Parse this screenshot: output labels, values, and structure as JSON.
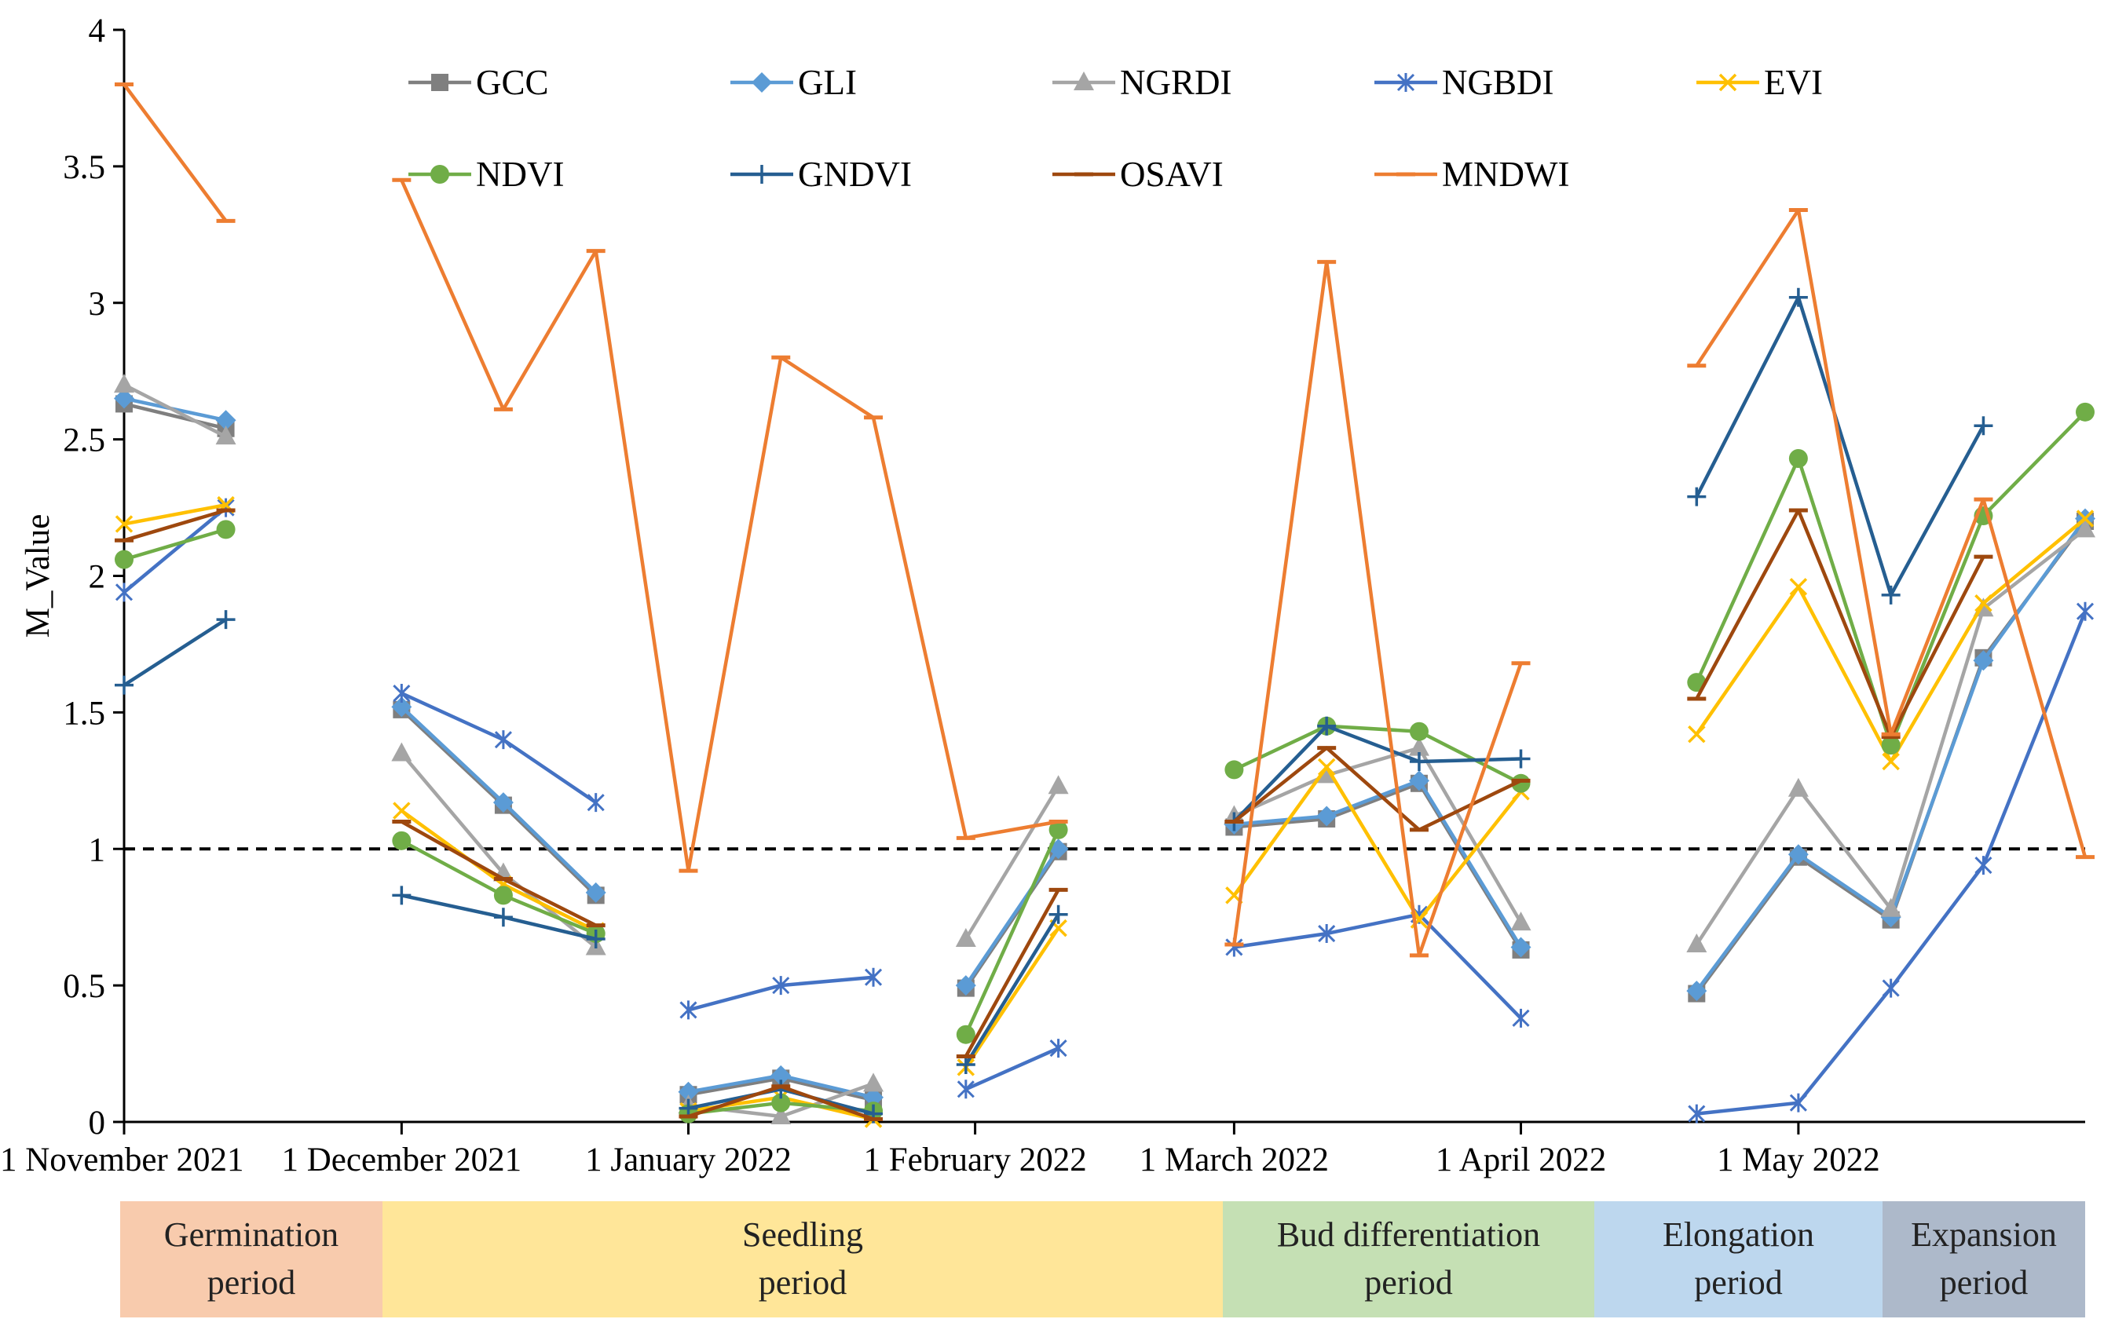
{
  "chart_data": {
    "type": "line",
    "title": "",
    "xlabel": "",
    "ylabel": "M_Value",
    "ylim": [
      0,
      4
    ],
    "yticks": [
      "0",
      "0.5",
      "1",
      "1.5",
      "2",
      "2.5",
      "3",
      "3.5",
      "4"
    ],
    "threshold": 1,
    "x_ticks": [
      {
        "label": "1 November 2021",
        "day": 0
      },
      {
        "label": "1 December 2021",
        "day": 30
      },
      {
        "label": "1 January 2022",
        "day": 61
      },
      {
        "label": "1 February 2022",
        "day": 92
      },
      {
        "label": "1 March 2022",
        "day": 120
      },
      {
        "label": "1 April 2022",
        "day": 151
      },
      {
        "label": "1 May 2022",
        "day": 181
      }
    ],
    "x_range_days": [
      0,
      212
    ],
    "series": [
      {
        "name": "GCC",
        "color": "#7f7f7f",
        "marker": "square",
        "segments": [
          {
            "x": [
              0,
              11
            ],
            "values": [
              2.63,
              2.54
            ]
          },
          {
            "x": [
              30,
              41,
              51
            ],
            "values": [
              1.51,
              1.16,
              0.83
            ]
          },
          {
            "x": [
              61,
              71,
              81
            ],
            "values": [
              0.1,
              0.16,
              0.08
            ]
          },
          {
            "x": [
              91,
              101
            ],
            "values": [
              0.49,
              0.99
            ]
          },
          {
            "x": [
              120,
              130,
              140,
              151
            ],
            "values": [
              1.08,
              1.11,
              1.24,
              0.63
            ]
          },
          {
            "x": [
              170,
              181,
              191,
              201,
              212
            ],
            "values": [
              0.47,
              0.97,
              0.74,
              1.7,
              2.2
            ]
          }
        ]
      },
      {
        "name": "GLI",
        "color": "#5b9bd5",
        "marker": "diamond",
        "segments": [
          {
            "x": [
              0,
              11
            ],
            "values": [
              2.65,
              2.57
            ]
          },
          {
            "x": [
              30,
              41,
              51
            ],
            "values": [
              1.52,
              1.17,
              0.84
            ]
          },
          {
            "x": [
              61,
              71,
              81
            ],
            "values": [
              0.11,
              0.17,
              0.09
            ]
          },
          {
            "x": [
              91,
              101
            ],
            "values": [
              0.5,
              1.0
            ]
          },
          {
            "x": [
              120,
              130,
              140,
              151
            ],
            "values": [
              1.09,
              1.12,
              1.25,
              0.64
            ]
          },
          {
            "x": [
              170,
              181,
              191,
              201,
              212
            ],
            "values": [
              0.48,
              0.98,
              0.75,
              1.69,
              2.21
            ]
          }
        ]
      },
      {
        "name": "NGRDI",
        "color": "#a5a5a5",
        "marker": "triangle",
        "segments": [
          {
            "x": [
              0,
              11
            ],
            "values": [
              2.7,
              2.51
            ]
          },
          {
            "x": [
              30,
              41,
              51
            ],
            "values": [
              1.35,
              0.91,
              0.64
            ]
          },
          {
            "x": [
              61,
              71,
              81
            ],
            "values": [
              0.06,
              0.02,
              0.14
            ]
          },
          {
            "x": [
              91,
              101
            ],
            "values": [
              0.67,
              1.23
            ]
          },
          {
            "x": [
              120,
              130,
              140,
              151
            ],
            "values": [
              1.12,
              1.27,
              1.37,
              0.73
            ]
          },
          {
            "x": [
              170,
              181,
              191,
              201,
              212
            ],
            "values": [
              0.65,
              1.22,
              0.78,
              1.88,
              2.17
            ]
          }
        ]
      },
      {
        "name": "NGBDI",
        "color": "#4472c4",
        "marker": "star",
        "segments": [
          {
            "x": [
              0,
              11
            ],
            "values": [
              1.94,
              2.25
            ]
          },
          {
            "x": [
              30,
              41,
              51
            ],
            "values": [
              1.57,
              1.4,
              1.17
            ]
          },
          {
            "x": [
              61,
              71,
              81
            ],
            "values": [
              0.41,
              0.5,
              0.53
            ]
          },
          {
            "x": [
              91,
              101
            ],
            "values": [
              0.12,
              0.27
            ]
          },
          {
            "x": [
              120,
              130,
              140,
              151
            ],
            "values": [
              0.64,
              0.69,
              0.76,
              0.38
            ]
          },
          {
            "x": [
              170,
              181,
              191,
              201,
              212
            ],
            "values": [
              0.03,
              0.07,
              0.49,
              0.94,
              1.87
            ]
          }
        ]
      },
      {
        "name": "EVI",
        "color": "#ffc000",
        "marker": "x",
        "segments": [
          {
            "x": [
              0,
              11
            ],
            "values": [
              2.19,
              2.26
            ]
          },
          {
            "x": [
              30,
              41,
              51
            ],
            "values": [
              1.14,
              0.87,
              0.7
            ]
          },
          {
            "x": [
              61,
              71,
              81
            ],
            "values": [
              0.04,
              0.09,
              0.01
            ]
          },
          {
            "x": [
              91,
              101
            ],
            "values": [
              0.2,
              0.71
            ]
          },
          {
            "x": [
              120,
              130,
              140,
              151
            ],
            "values": [
              0.83,
              1.3,
              0.74,
              1.21
            ]
          },
          {
            "x": [
              170,
              181,
              191,
              201,
              212
            ],
            "values": [
              1.42,
              1.96,
              1.32,
              1.9,
              2.21
            ]
          }
        ]
      },
      {
        "name": "NDVI",
        "color": "#70ad47",
        "marker": "circle",
        "segments": [
          {
            "x": [
              0,
              11
            ],
            "values": [
              2.06,
              2.17
            ]
          },
          {
            "x": [
              30,
              41,
              51
            ],
            "values": [
              1.03,
              0.83,
              0.69
            ]
          },
          {
            "x": [
              61,
              71,
              81
            ],
            "values": [
              0.03,
              0.07,
              0.04
            ]
          },
          {
            "x": [
              91,
              101
            ],
            "values": [
              0.32,
              1.07
            ]
          },
          {
            "x": [
              120,
              130,
              140,
              151
            ],
            "values": [
              1.29,
              1.45,
              1.43,
              1.24
            ]
          },
          {
            "x": [
              170,
              181,
              191,
              201,
              212
            ],
            "values": [
              1.61,
              2.43,
              1.38,
              2.22,
              2.6
            ]
          }
        ]
      },
      {
        "name": "GNDVI",
        "color": "#255e91",
        "marker": "plus",
        "segments": [
          {
            "x": [
              0,
              11
            ],
            "values": [
              1.6,
              1.84
            ]
          },
          {
            "x": [
              30,
              41,
              51
            ],
            "values": [
              0.83,
              0.75,
              0.67
            ]
          },
          {
            "x": [
              61,
              71,
              81
            ],
            "values": [
              0.05,
              0.12,
              0.03
            ]
          },
          {
            "x": [
              91,
              101
            ],
            "values": [
              0.21,
              0.76
            ]
          },
          {
            "x": [
              120,
              130,
              140,
              151
            ],
            "values": [
              1.1,
              1.45,
              1.32,
              1.33
            ]
          },
          {
            "x": [
              170,
              181,
              191,
              201
            ],
            "values": [
              2.29,
              3.02,
              1.93,
              2.55
            ]
          }
        ]
      },
      {
        "name": "OSAVI",
        "color": "#9e480e",
        "marker": "dash",
        "segments": [
          {
            "x": [
              0,
              11
            ],
            "values": [
              2.13,
              2.24
            ]
          },
          {
            "x": [
              30,
              41,
              51
            ],
            "values": [
              1.1,
              0.89,
              0.72
            ]
          },
          {
            "x": [
              61,
              71,
              81
            ],
            "values": [
              0.02,
              0.13,
              0.01
            ]
          },
          {
            "x": [
              91,
              101
            ],
            "values": [
              0.24,
              0.85
            ]
          },
          {
            "x": [
              120,
              130,
              140,
              151
            ],
            "values": [
              1.1,
              1.37,
              1.07,
              1.25
            ]
          },
          {
            "x": [
              170,
              181,
              191,
              201
            ],
            "values": [
              1.55,
              2.24,
              1.41,
              2.07
            ]
          }
        ]
      },
      {
        "name": "MNDWI",
        "color": "#ed7d31",
        "marker": "dash",
        "segments": [
          {
            "x": [
              0,
              11
            ],
            "values": [
              3.8,
              3.3
            ]
          },
          {
            "x": [
              30,
              41,
              51,
              61,
              71,
              81,
              91,
              101
            ],
            "values": [
              3.45,
              2.61,
              3.19,
              0.92,
              2.8,
              2.58,
              1.04,
              1.1
            ]
          },
          {
            "x": [
              120,
              130,
              140,
              151
            ],
            "values": [
              0.65,
              3.15,
              0.61,
              1.68
            ]
          },
          {
            "x": [
              170,
              181,
              191,
              201,
              212
            ],
            "values": [
              2.77,
              3.34,
              1.42,
              2.28,
              0.97
            ]
          }
        ]
      }
    ]
  },
  "periods": [
    {
      "line1": "Germination",
      "line2": "period",
      "color": "#f8cbad"
    },
    {
      "line1": "Seedling",
      "line2": "period",
      "color": "#ffe699"
    },
    {
      "line1": "Bud differentiation",
      "line2": "period",
      "color": "#c5e0b4"
    },
    {
      "line1": "Elongation",
      "line2": "period",
      "color": "#bdd7ee"
    },
    {
      "line1": "Expansion",
      "line2": "period",
      "color": "#adb9ca"
    }
  ]
}
